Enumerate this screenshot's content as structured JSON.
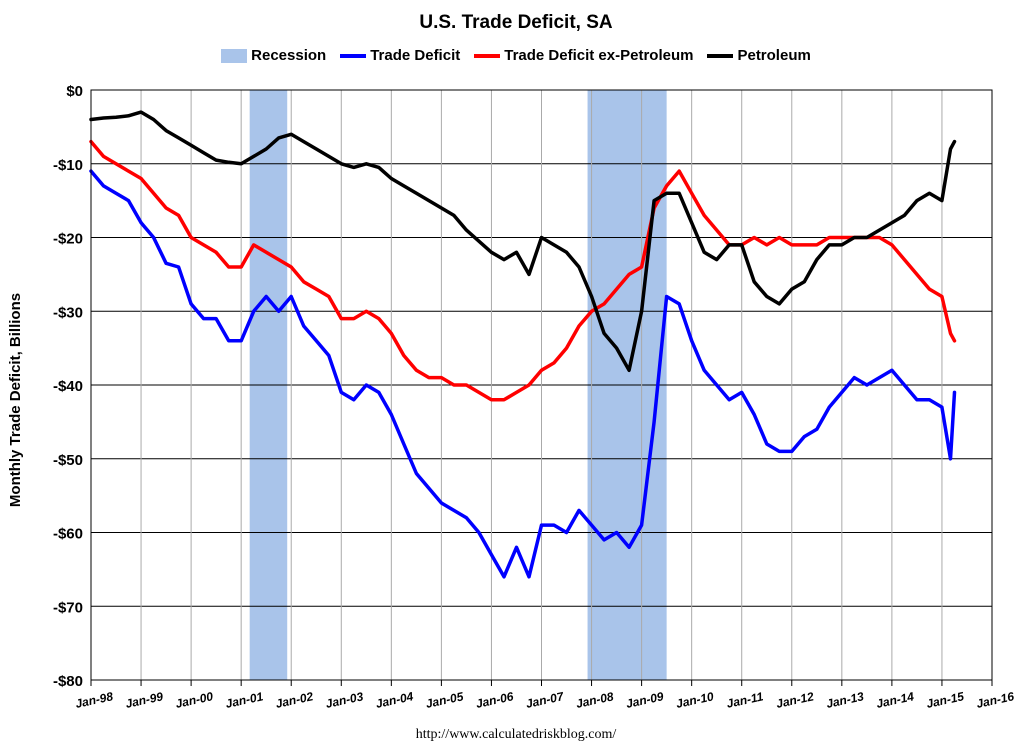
{
  "colors": {
    "recession": "#A9C4EA",
    "trade_deficit": "#0000FF",
    "ex_petroleum": "#FF0000",
    "petroleum": "#000000"
  },
  "footer": {
    "url": "http://www.calculatedriskblog.com/"
  },
  "chart_data": {
    "type": "line",
    "title": "U.S. Trade Deficit, SA",
    "ylabel": "Monthly Trade Deficit, Billions",
    "xlabel": "",
    "ylim": [
      -80,
      0
    ],
    "yticks": [
      0,
      -10,
      -20,
      -30,
      -40,
      -50,
      -60,
      -70,
      -80
    ],
    "ytick_labels": [
      "$0",
      "-$10",
      "-$20",
      "-$30",
      "-$40",
      "-$50",
      "-$60",
      "-$70",
      "-$80"
    ],
    "xlim": [
      1998.0,
      2016.0
    ],
    "xtick_labels": [
      "Jan-98",
      "Jan-99",
      "Jan-00",
      "Jan-01",
      "Jan-02",
      "Jan-03",
      "Jan-04",
      "Jan-05",
      "Jan-06",
      "Jan-07",
      "Jan-08",
      "Jan-09",
      "Jan-10",
      "Jan-11",
      "Jan-12",
      "Jan-13",
      "Jan-14",
      "Jan-15",
      "Jan-16"
    ],
    "grid": true,
    "legend_position": "top-center",
    "legend": [
      "Recession",
      "Trade Deficit",
      "Trade Deficit ex-Petroleum",
      "Petroleum"
    ],
    "recessions": [
      {
        "start": 2001.17,
        "end": 2001.92
      },
      {
        "start": 2007.92,
        "end": 2009.5
      }
    ],
    "series": [
      {
        "name": "Trade Deficit",
        "color": "#0000FF",
        "x": [
          1998.0,
          1998.25,
          1998.5,
          1998.75,
          1999.0,
          1999.25,
          1999.5,
          1999.75,
          2000.0,
          2000.25,
          2000.5,
          2000.75,
          2001.0,
          2001.25,
          2001.5,
          2001.75,
          2002.0,
          2002.25,
          2002.5,
          2002.75,
          2003.0,
          2003.25,
          2003.5,
          2003.75,
          2004.0,
          2004.25,
          2004.5,
          2004.75,
          2005.0,
          2005.25,
          2005.5,
          2005.75,
          2006.0,
          2006.25,
          2006.5,
          2006.75,
          2007.0,
          2007.25,
          2007.5,
          2007.75,
          2008.0,
          2008.25,
          2008.5,
          2008.75,
          2009.0,
          2009.25,
          2009.5,
          2009.75,
          2010.0,
          2010.25,
          2010.5,
          2010.75,
          2011.0,
          2011.25,
          2011.5,
          2011.75,
          2012.0,
          2012.25,
          2012.5,
          2012.75,
          2013.0,
          2013.25,
          2013.5,
          2013.75,
          2014.0,
          2014.25,
          2014.5,
          2014.75,
          2015.0,
          2015.17,
          2015.25
        ],
        "values": [
          -11,
          -13,
          -14,
          -15,
          -18,
          -20,
          -23.5,
          -24,
          -29,
          -31,
          -31,
          -34,
          -34,
          -30,
          -28,
          -30,
          -28,
          -32,
          -34,
          -36,
          -41,
          -42,
          -40,
          -41,
          -44,
          -48,
          -52,
          -54,
          -56,
          -57,
          -58,
          -60,
          -63,
          -66,
          -62,
          -66,
          -59,
          -59,
          -60,
          -57,
          -59,
          -61,
          -60,
          -62,
          -59,
          -45,
          -28,
          -29,
          -34,
          -38,
          -40,
          -42,
          -41,
          -44,
          -48,
          -49,
          -49,
          -47,
          -46,
          -43,
          -41,
          -39,
          -40,
          -39,
          -38,
          -40,
          -42,
          -42,
          -43,
          -50,
          -41
        ]
      },
      {
        "name": "Trade Deficit ex-Petroleum",
        "color": "#FF0000",
        "x": [
          1998.0,
          1998.25,
          1998.5,
          1998.75,
          1999.0,
          1999.25,
          1999.5,
          1999.75,
          2000.0,
          2000.25,
          2000.5,
          2000.75,
          2001.0,
          2001.25,
          2001.5,
          2001.75,
          2002.0,
          2002.25,
          2002.5,
          2002.75,
          2003.0,
          2003.25,
          2003.5,
          2003.75,
          2004.0,
          2004.25,
          2004.5,
          2004.75,
          2005.0,
          2005.25,
          2005.5,
          2005.75,
          2006.0,
          2006.25,
          2006.5,
          2006.75,
          2007.0,
          2007.25,
          2007.5,
          2007.75,
          2008.0,
          2008.25,
          2008.5,
          2008.75,
          2009.0,
          2009.25,
          2009.5,
          2009.75,
          2010.0,
          2010.25,
          2010.5,
          2010.75,
          2011.0,
          2011.25,
          2011.5,
          2011.75,
          2012.0,
          2012.25,
          2012.5,
          2012.75,
          2013.0,
          2013.25,
          2013.5,
          2013.75,
          2014.0,
          2014.25,
          2014.5,
          2014.75,
          2015.0,
          2015.17,
          2015.25
        ],
        "values": [
          -7,
          -9,
          -10,
          -11,
          -12,
          -14,
          -16,
          -17,
          -20,
          -21,
          -22,
          -24,
          -24,
          -21,
          -22,
          -23,
          -24,
          -26,
          -27,
          -28,
          -31,
          -31,
          -30,
          -31,
          -33,
          -36,
          -38,
          -39,
          -39,
          -40,
          -40,
          -41,
          -42,
          -42,
          -41,
          -40,
          -38,
          -37,
          -35,
          -32,
          -30,
          -29,
          -27,
          -25,
          -24,
          -16,
          -13,
          -11,
          -14,
          -17,
          -19,
          -21,
          -21,
          -20,
          -21,
          -20,
          -21,
          -21,
          -21,
          -20,
          -20,
          -20,
          -20,
          -20,
          -21,
          -23,
          -25,
          -27,
          -28,
          -33,
          -34
        ]
      },
      {
        "name": "Petroleum",
        "color": "#000000",
        "x": [
          1998.0,
          1998.25,
          1998.5,
          1998.75,
          1999.0,
          1999.25,
          1999.5,
          1999.75,
          2000.0,
          2000.25,
          2000.5,
          2000.75,
          2001.0,
          2001.25,
          2001.5,
          2001.75,
          2002.0,
          2002.25,
          2002.5,
          2002.75,
          2003.0,
          2003.25,
          2003.5,
          2003.75,
          2004.0,
          2004.25,
          2004.5,
          2004.75,
          2005.0,
          2005.25,
          2005.5,
          2005.75,
          2006.0,
          2006.25,
          2006.5,
          2006.75,
          2007.0,
          2007.25,
          2007.5,
          2007.75,
          2008.0,
          2008.25,
          2008.5,
          2008.75,
          2009.0,
          2009.25,
          2009.5,
          2009.75,
          2010.0,
          2010.25,
          2010.5,
          2010.75,
          2011.0,
          2011.25,
          2011.5,
          2011.75,
          2012.0,
          2012.25,
          2012.5,
          2012.75,
          2013.0,
          2013.25,
          2013.5,
          2013.75,
          2014.0,
          2014.25,
          2014.5,
          2014.75,
          2015.0,
          2015.17,
          2015.25
        ],
        "values": [
          -4,
          -3.8,
          -3.7,
          -3.5,
          -3,
          -4,
          -5.5,
          -6.5,
          -7.5,
          -8.5,
          -9.5,
          -9.8,
          -10,
          -9,
          -8,
          -6.5,
          -6,
          -7,
          -8,
          -9,
          -10,
          -10.5,
          -10,
          -10.5,
          -12,
          -13,
          -14,
          -15,
          -16,
          -17,
          -19,
          -20.5,
          -22,
          -23,
          -22,
          -25,
          -20,
          -21,
          -22,
          -24,
          -28,
          -33,
          -35,
          -38,
          -30,
          -15,
          -14,
          -14,
          -18,
          -22,
          -23,
          -21,
          -21,
          -26,
          -28,
          -29,
          -27,
          -26,
          -23,
          -21,
          -21,
          -20,
          -20,
          -19,
          -18,
          -17,
          -15,
          -14,
          -15,
          -8,
          -7
        ]
      }
    ]
  }
}
